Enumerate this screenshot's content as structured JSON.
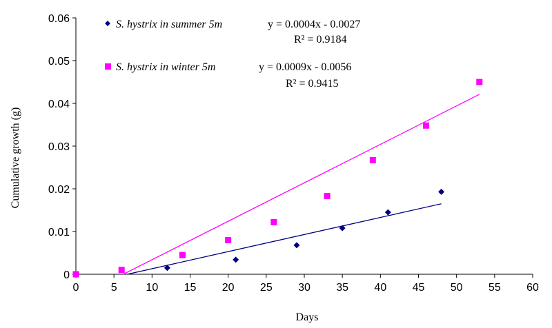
{
  "chart_data": {
    "type": "scatter",
    "xlabel": "Days",
    "ylabel": "Cumulative growth  (g)",
    "xlim": [
      0,
      60
    ],
    "ylim": [
      0,
      0.06
    ],
    "xticks": [
      0,
      5,
      10,
      15,
      20,
      25,
      30,
      35,
      40,
      45,
      50,
      55,
      60
    ],
    "yticks": [
      0,
      0.01,
      0.02,
      0.03,
      0.04,
      0.05,
      0.06
    ],
    "xtick_labels": [
      "0",
      "5",
      "10",
      "15",
      "20",
      "25",
      "30",
      "35",
      "40",
      "45",
      "50",
      "55",
      "60"
    ],
    "ytick_labels": [
      "0",
      "0.01",
      "0.02",
      "0.03",
      "0.04",
      "0.05",
      "0.06"
    ],
    "grid": false,
    "legend_position": "top-left",
    "series": [
      {
        "name": "S. hystrix in summer  5m",
        "marker": "diamond",
        "color": "#000080",
        "x": [
          0,
          12,
          21,
          29,
          35,
          41,
          48
        ],
        "y": [
          0,
          0.0015,
          0.0034,
          0.0068,
          0.0108,
          0.0145,
          0.0193
        ],
        "trendline": {
          "equation": "y = 0.0004x - 0.0027",
          "r2": "R² = 0.9184",
          "slope": 0.0004,
          "intercept": -0.0027,
          "x_range": [
            6.75,
            48
          ]
        }
      },
      {
        "name": "S. hystrix in winter  5m",
        "marker": "square",
        "color": "#FF00FF",
        "x": [
          0,
          6,
          14,
          20,
          26,
          33,
          39,
          46,
          53
        ],
        "y": [
          0,
          0.001,
          0.0045,
          0.008,
          0.0122,
          0.0183,
          0.0267,
          0.0348,
          0.045
        ],
        "trendline": {
          "equation": "y = 0.0009x - 0.0056",
          "r2": "R² = 0.9415",
          "slope": 0.0009,
          "intercept": -0.0056,
          "x_range": [
            6.22,
            53
          ]
        }
      }
    ]
  }
}
